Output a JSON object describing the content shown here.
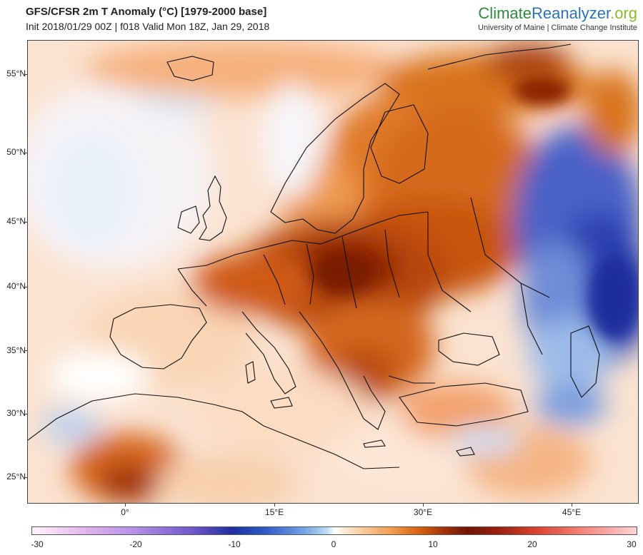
{
  "header": {
    "title": "GFS/CFSR 2m T Anomaly (°C) [1979-2000 base]",
    "subtitle": "Init 2018/01/29 00Z | f018 Valid Mon 18Z, Jan 29, 2018"
  },
  "brand": {
    "name_part1": "Climate",
    "name_part2": "Reanalyzer",
    "name_part3": ".org",
    "tagline": "University of Maine | Climate Change Institute"
  },
  "map": {
    "lat_labels": [
      "55°N",
      "50°N",
      "45°N",
      "40°N",
      "35°N",
      "30°N",
      "25°N"
    ],
    "lon_labels": [
      "0°",
      "15°E",
      "30°E",
      "45°E"
    ]
  },
  "colorbar": {
    "labels": [
      "-30",
      "-20",
      "-10",
      "0",
      "10",
      "20",
      "30"
    ],
    "min": -30,
    "max": 30,
    "unit": "°C"
  },
  "colors": {
    "warm_strong": "#8a2204",
    "warm_mid": "#d9600e",
    "warm_light": "#f5b07a",
    "neutral": "#ffffff",
    "cold_light": "#b9d4f2",
    "cold_strong": "#2a3fb0"
  }
}
